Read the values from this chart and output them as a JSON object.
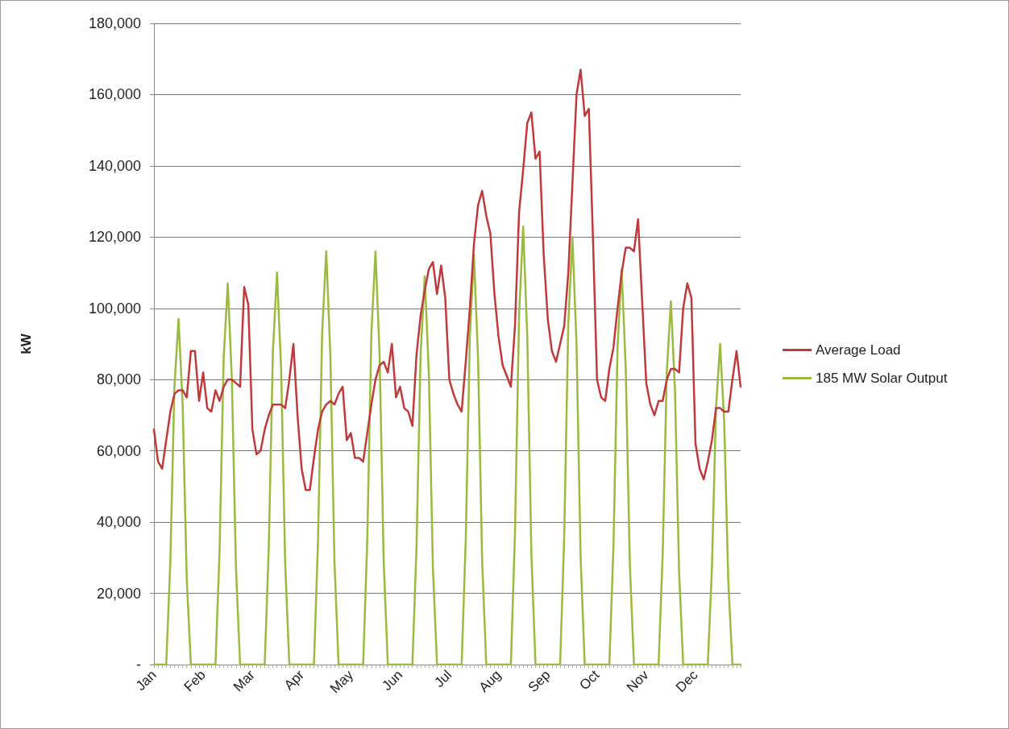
{
  "chart_data": {
    "type": "line",
    "ylabel": "kW",
    "categories": [
      "Jan",
      null,
      null,
      null,
      null,
      null,
      null,
      null,
      null,
      null,
      null,
      null,
      "Feb",
      null,
      null,
      null,
      null,
      null,
      null,
      null,
      null,
      null,
      null,
      null,
      "Mar",
      null,
      null,
      null,
      null,
      null,
      null,
      null,
      null,
      null,
      null,
      null,
      "Apr",
      null,
      null,
      null,
      null,
      null,
      null,
      null,
      null,
      null,
      null,
      null,
      "May",
      null,
      null,
      null,
      null,
      null,
      null,
      null,
      null,
      null,
      null,
      null,
      "Jun",
      null,
      null,
      null,
      null,
      null,
      null,
      null,
      null,
      null,
      null,
      null,
      "Jul",
      null,
      null,
      null,
      null,
      null,
      null,
      null,
      null,
      null,
      null,
      null,
      "Aug",
      null,
      null,
      null,
      null,
      null,
      null,
      null,
      null,
      null,
      null,
      null,
      "Sep",
      null,
      null,
      null,
      null,
      null,
      null,
      null,
      null,
      null,
      null,
      null,
      "Oct",
      null,
      null,
      null,
      null,
      null,
      null,
      null,
      null,
      null,
      null,
      null,
      "Nov",
      null,
      null,
      null,
      null,
      null,
      null,
      null,
      null,
      null,
      null,
      null,
      "Dec",
      null,
      null,
      null,
      null,
      null,
      null,
      null,
      null,
      null,
      null,
      null
    ],
    "series": [
      {
        "name": "Average Load",
        "color": "#c0393b",
        "values": [
          66000,
          57000,
          55000,
          63000,
          71000,
          76000,
          77000,
          77000,
          75000,
          88000,
          88000,
          74000,
          82000,
          72000,
          71000,
          77000,
          74000,
          78000,
          80000,
          80000,
          79000,
          78000,
          106000,
          101000,
          66000,
          59000,
          60000,
          66000,
          70000,
          73000,
          73000,
          73000,
          72000,
          80000,
          90000,
          70000,
          55000,
          49000,
          49000,
          58000,
          66000,
          71000,
          73000,
          74000,
          73000,
          76000,
          78000,
          63000,
          65000,
          58000,
          58000,
          57000,
          65000,
          73000,
          80000,
          84000,
          85000,
          82000,
          90000,
          75000,
          78000,
          72000,
          71000,
          67000,
          87000,
          98000,
          105000,
          111000,
          113000,
          104000,
          112000,
          103000,
          80000,
          76000,
          73000,
          71000,
          85000,
          100000,
          118000,
          129000,
          133000,
          126000,
          121000,
          104000,
          92000,
          84000,
          81000,
          78000,
          95000,
          127000,
          139000,
          152000,
          155000,
          142000,
          144000,
          115000,
          97000,
          88000,
          85000,
          90000,
          95000,
          110000,
          135000,
          160000,
          167000,
          154000,
          156000,
          120000,
          80000,
          75000,
          74000,
          83000,
          89000,
          100000,
          110000,
          117000,
          117000,
          116000,
          125000,
          102000,
          79000,
          73000,
          70000,
          74000,
          74000,
          80000,
          83000,
          83000,
          82000,
          100000,
          107000,
          103000,
          62000,
          55000,
          52000,
          57000,
          63000,
          72000,
          72000,
          71000,
          71000,
          80000,
          88000,
          78000
        ]
      },
      {
        "name": "185 MW Solar Output",
        "color": "#9bbb40",
        "values": [
          0,
          0,
          0,
          0,
          29000,
          78000,
          97000,
          73000,
          24000,
          0,
          0,
          0,
          0,
          0,
          0,
          0,
          32000,
          86000,
          107000,
          80000,
          27000,
          0,
          0,
          0,
          0,
          0,
          0,
          0,
          33000,
          88000,
          110000,
          83000,
          28000,
          0,
          0,
          0,
          0,
          0,
          0,
          0,
          35000,
          93000,
          116000,
          87000,
          29000,
          0,
          0,
          0,
          0,
          0,
          0,
          0,
          35000,
          93000,
          116000,
          87000,
          29000,
          0,
          0,
          0,
          0,
          0,
          0,
          0,
          33000,
          87000,
          109000,
          82000,
          27000,
          0,
          0,
          0,
          0,
          0,
          0,
          0,
          35000,
          92000,
          115000,
          86000,
          29000,
          0,
          0,
          0,
          0,
          0,
          0,
          0,
          37000,
          98000,
          123000,
          92000,
          31000,
          0,
          0,
          0,
          0,
          0,
          0,
          0,
          36000,
          96000,
          120000,
          90000,
          30000,
          0,
          0,
          0,
          0,
          0,
          0,
          0,
          33000,
          89000,
          111000,
          83000,
          28000,
          0,
          0,
          0,
          0,
          0,
          0,
          0,
          31000,
          82000,
          102000,
          77000,
          26000,
          0,
          0,
          0,
          0,
          0,
          0,
          0,
          27000,
          72000,
          90000,
          68000,
          23000,
          0,
          0,
          0
        ]
      }
    ],
    "ylim": [
      0,
      180000
    ],
    "yticks": [
      {
        "value": 0,
        "label": "-"
      },
      {
        "value": 20000,
        "label": "20,000"
      },
      {
        "value": 40000,
        "label": "40,000"
      },
      {
        "value": 60000,
        "label": "60,000"
      },
      {
        "value": 80000,
        "label": "80,000"
      },
      {
        "value": 100000,
        "label": "100,000"
      },
      {
        "value": 120000,
        "label": "120,000"
      },
      {
        "value": 140000,
        "label": "140,000"
      },
      {
        "value": 160000,
        "label": "160,000"
      },
      {
        "value": 180000,
        "label": "180,000"
      }
    ],
    "grid": "y",
    "legend": "right",
    "marker": "none",
    "line_style": "solid"
  }
}
